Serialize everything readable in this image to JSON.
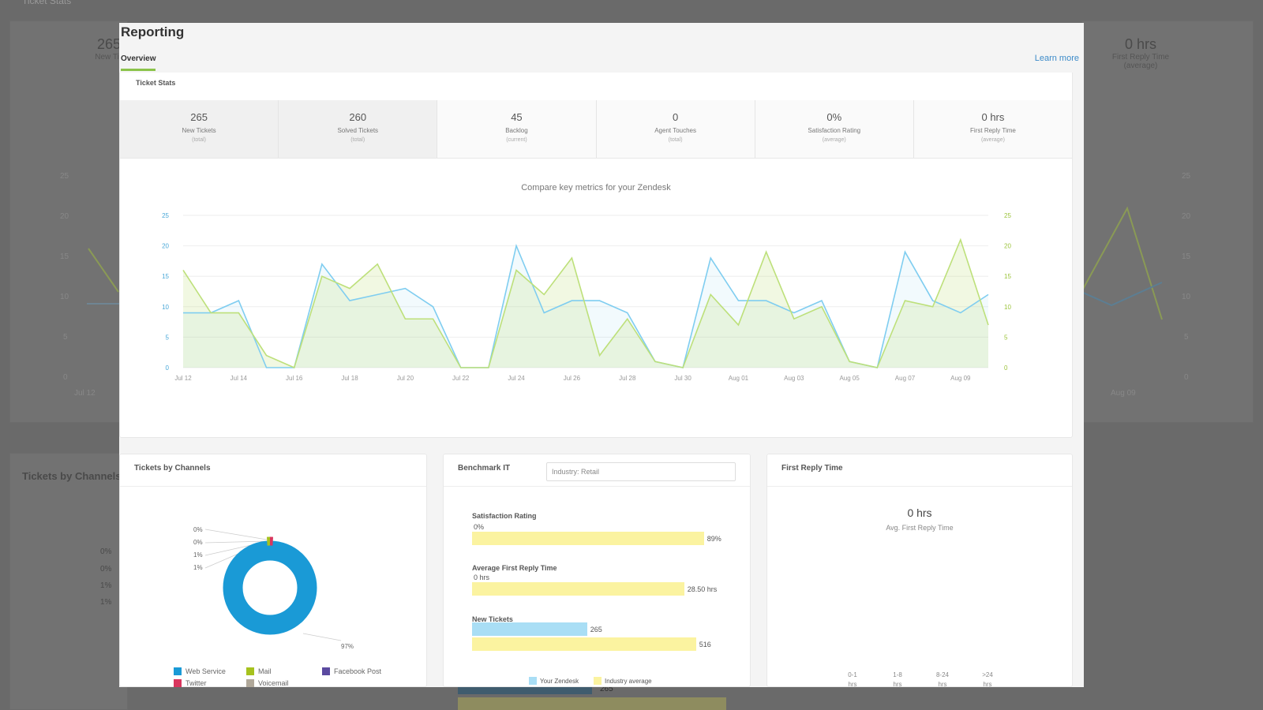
{
  "background": {
    "title": "Ticket Stats",
    "stat_left_value": "265",
    "stat_left_label": "New Tic",
    "stat_right_value": "0 hrs",
    "stat_right_label": "First Reply Time",
    "stat_right_sub": "(average)",
    "section_title": "Tickets by Channels",
    "left_axis": [
      "25",
      "20",
      "15",
      "10",
      "5",
      "0"
    ],
    "right_axis": [
      "25",
      "20",
      "15",
      "10",
      "5",
      "0"
    ],
    "x_left": "Jul 12",
    "x_right": "Aug 09",
    "pct_labels": [
      "0%",
      "0%",
      "1%",
      "1%"
    ],
    "bar_value": "265"
  },
  "modal": {
    "title": "Reporting",
    "tab": "Overview",
    "learn_more": "Learn more",
    "ticket_stats_title": "Ticket Stats",
    "stats": [
      {
        "value": "265",
        "label": "New Tickets",
        "sub": "(total)"
      },
      {
        "value": "260",
        "label": "Solved Tickets",
        "sub": "(total)"
      },
      {
        "value": "45",
        "label": "Backlog",
        "sub": "(current)"
      },
      {
        "value": "0",
        "label": "Agent Touches",
        "sub": "(total)"
      },
      {
        "value": "0%",
        "label": "Satisfaction Rating",
        "sub": "(average)"
      },
      {
        "value": "0 hrs",
        "label": "First Reply Time",
        "sub": "(average)"
      }
    ],
    "chart_title": "Compare key metrics for your Zendesk"
  },
  "chart_data": {
    "type": "line",
    "title": "Compare key metrics for your Zendesk",
    "x": [
      "Jul 12",
      "Jul 13",
      "Jul 14",
      "Jul 15",
      "Jul 16",
      "Jul 17",
      "Jul 18",
      "Jul 19",
      "Jul 20",
      "Jul 21",
      "Jul 22",
      "Jul 23",
      "Jul 24",
      "Jul 25",
      "Jul 26",
      "Jul 27",
      "Jul 28",
      "Jul 29",
      "Jul 30",
      "Jul 31",
      "Aug 01",
      "Aug 02",
      "Aug 03",
      "Aug 04",
      "Aug 05",
      "Aug 06",
      "Aug 07",
      "Aug 08",
      "Aug 09",
      "Aug 10"
    ],
    "tick_labels": [
      "Jul 12",
      "Jul 14",
      "Jul 16",
      "Jul 18",
      "Jul 20",
      "Jul 22",
      "Jul 24",
      "Jul 26",
      "Jul 28",
      "Jul 30",
      "Aug 01",
      "Aug 03",
      "Aug 05",
      "Aug 07",
      "Aug 09"
    ],
    "series": [
      {
        "name": "New Tickets",
        "color": "#7fcdf0",
        "values": [
          9,
          9,
          11,
          0,
          0,
          17,
          11,
          12,
          13,
          10,
          0,
          0,
          20,
          9,
          11,
          11,
          9,
          1,
          0,
          18,
          11,
          11,
          9,
          11,
          1,
          0,
          19,
          11,
          9,
          12
        ]
      },
      {
        "name": "Solved Tickets",
        "color": "#bde07a",
        "values": [
          16,
          9,
          9,
          2,
          0,
          15,
          13,
          17,
          8,
          8,
          0,
          0,
          16,
          12,
          18,
          2,
          8,
          1,
          0,
          12,
          7,
          19,
          8,
          10,
          1,
          0,
          11,
          10,
          21,
          7
        ]
      }
    ],
    "ylim": [
      0,
      25
    ],
    "yticks": [
      "0",
      "5",
      "10",
      "15",
      "20",
      "25"
    ],
    "xlabel": "",
    "ylabel": ""
  },
  "channels": {
    "title": "Tickets by Channels",
    "small_labels": [
      "0%",
      "0%",
      "1%",
      "1%"
    ],
    "main_label": "97%",
    "legend": [
      {
        "name": "Web Service",
        "color": "#1a9ad6"
      },
      {
        "name": "Mail",
        "color": "#a6c21e"
      },
      {
        "name": "Facebook Post",
        "color": "#5b4aa0"
      },
      {
        "name": "Twitter",
        "color": "#d9365e"
      },
      {
        "name": "Voicemail",
        "color": "#b0a89a"
      }
    ]
  },
  "benchmark": {
    "title": "Benchmark IT",
    "select_value": "Industry: Retail",
    "rows": [
      {
        "label": "Satisfaction Rating",
        "your_value": "0%",
        "your": 0,
        "industry_value": "89%",
        "industry": 89,
        "max": 100
      },
      {
        "label": "Average First Reply Time",
        "your_value": "0 hrs",
        "your": 0,
        "industry_value": "28.50 hrs",
        "industry": 28.5,
        "max": 35
      },
      {
        "label": "New Tickets",
        "your_value": "265",
        "your": 265,
        "industry_value": "516",
        "industry": 516,
        "max": 600
      }
    ],
    "legend_yours": "Your Zendesk",
    "legend_industry": "Industry average",
    "your_color": "#a9def5",
    "industry_color": "#fbf3a0"
  },
  "first_reply": {
    "title": "First Reply Time",
    "value": "0 hrs",
    "sub": "Avg. First Reply Time",
    "buckets": [
      {
        "top": "0-1",
        "bottom": "hrs"
      },
      {
        "top": "1-8",
        "bottom": "hrs"
      },
      {
        "top": "8-24",
        "bottom": "hrs"
      },
      {
        "top": ">24",
        "bottom": "hrs"
      }
    ]
  }
}
